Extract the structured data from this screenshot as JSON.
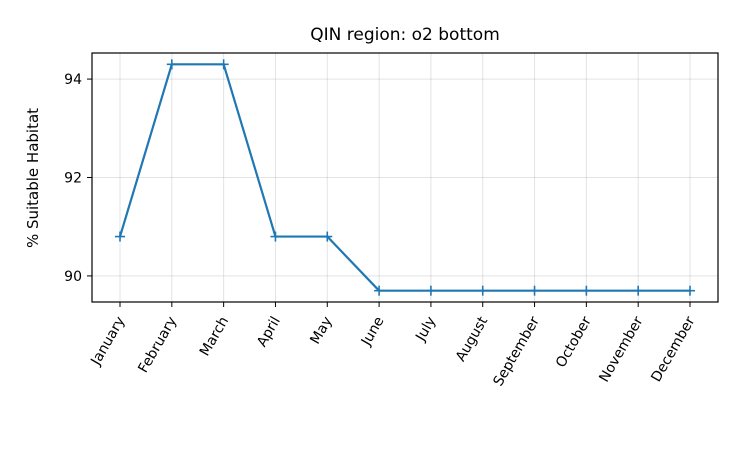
{
  "chart_data": {
    "type": "line",
    "title": "QIN region: o2 bottom",
    "xlabel": "",
    "ylabel": "% Suitable Habitat",
    "categories": [
      "January",
      "February",
      "March",
      "April",
      "May",
      "June",
      "July",
      "August",
      "September",
      "October",
      "November",
      "December"
    ],
    "series": [
      {
        "values": [
          90.8,
          94.3,
          94.3,
          90.8,
          90.8,
          89.7,
          89.7,
          89.7,
          89.7,
          89.7,
          89.7,
          89.7
        ],
        "color": "#1f77b4",
        "marker": "+"
      }
    ],
    "ylim": [
      89.47,
      94.53
    ],
    "yticks": [
      90,
      92,
      94
    ],
    "grid": true
  }
}
